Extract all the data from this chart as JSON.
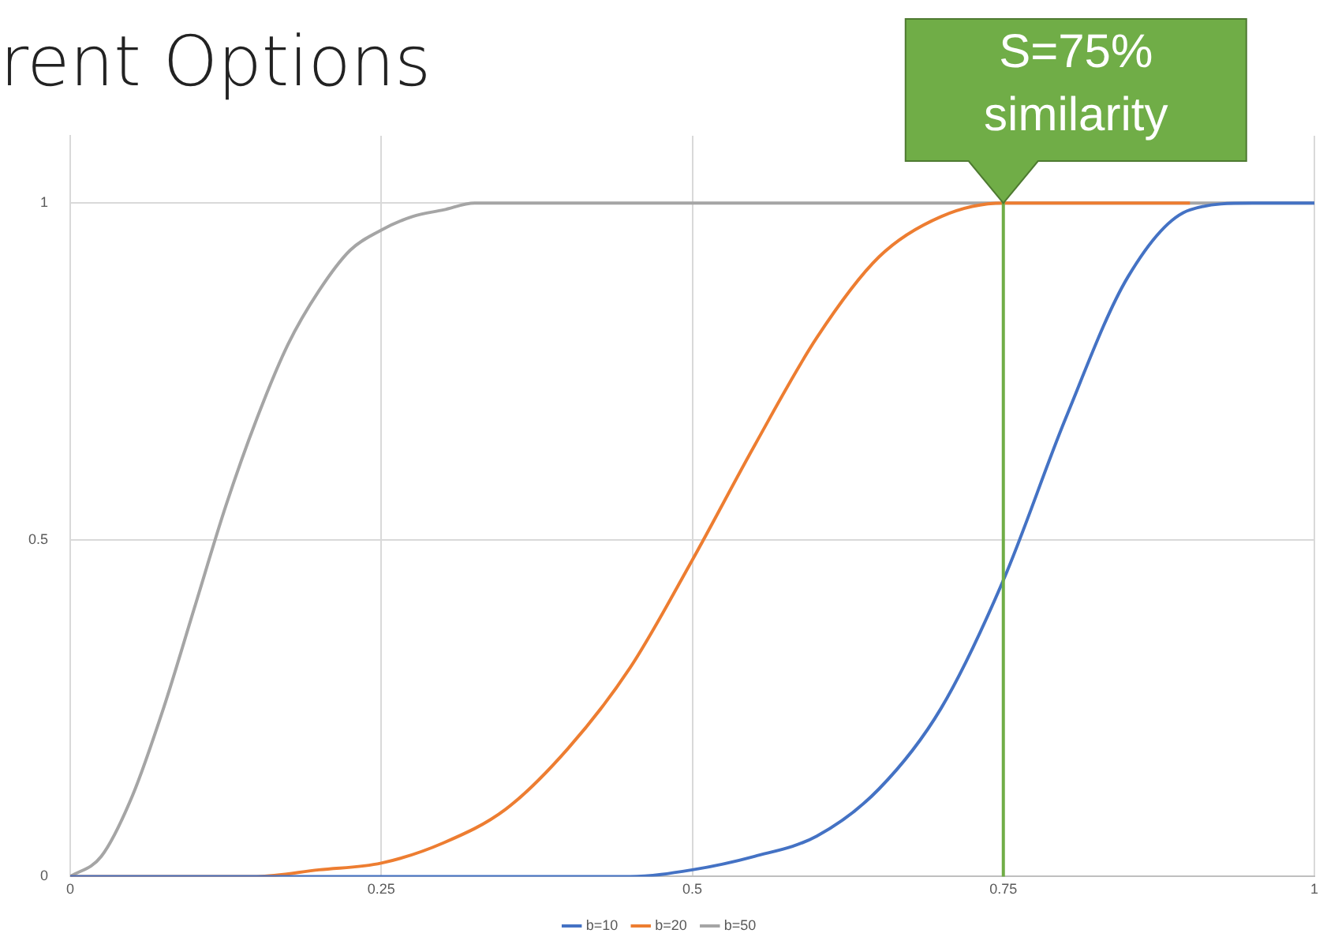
{
  "chart_data": {
    "type": "line",
    "title": "rent Options",
    "series": [
      {
        "name": "b=10",
        "color": "#4472c4",
        "x": [
          0,
          0.3,
          0.4,
          0.45,
          0.5,
          0.55,
          0.6,
          0.65,
          0.7,
          0.75,
          0.8,
          0.85,
          0.9,
          0.95,
          1
        ],
        "values": [
          0,
          0,
          0,
          0,
          0.01,
          0.03,
          0.06,
          0.13,
          0.25,
          0.44,
          0.68,
          0.89,
          0.99,
          1,
          1
        ]
      },
      {
        "name": "b=20",
        "color": "#ed7d31",
        "x": [
          0,
          0.1,
          0.15,
          0.2,
          0.25,
          0.3,
          0.35,
          0.4,
          0.45,
          0.5,
          0.55,
          0.6,
          0.65,
          0.7,
          0.75,
          0.8,
          0.9
        ],
        "values": [
          0,
          0,
          0,
          0.01,
          0.02,
          0.05,
          0.1,
          0.19,
          0.31,
          0.47,
          0.64,
          0.8,
          0.92,
          0.98,
          1,
          1,
          1
        ]
      },
      {
        "name": "b=50",
        "color": "#a5a5a5",
        "x": [
          0,
          0.025,
          0.05,
          0.075,
          0.1,
          0.125,
          0.15,
          0.175,
          0.2,
          0.225,
          0.25,
          0.275,
          0.3,
          0.325,
          0.35,
          0.4,
          0.5,
          0.75,
          1
        ],
        "values": [
          0,
          0.03,
          0.12,
          0.25,
          0.4,
          0.55,
          0.68,
          0.79,
          0.87,
          0.93,
          0.96,
          0.98,
          0.99,
          1,
          1,
          1,
          1,
          1,
          1
        ]
      }
    ],
    "xlim": [
      0,
      1
    ],
    "xticks": [
      0,
      0.25,
      0.5,
      0.75,
      1
    ],
    "ylim": [
      0,
      1.1
    ],
    "yticks": [
      0,
      0.5,
      1
    ],
    "grid": true,
    "legend": "bottom",
    "marker": "none",
    "line_style": "solid",
    "ref_lines": [
      {
        "axis": "x",
        "value": 0.75,
        "color": "#70ad47",
        "label": "S=75%\nsimilarity"
      }
    ]
  }
}
